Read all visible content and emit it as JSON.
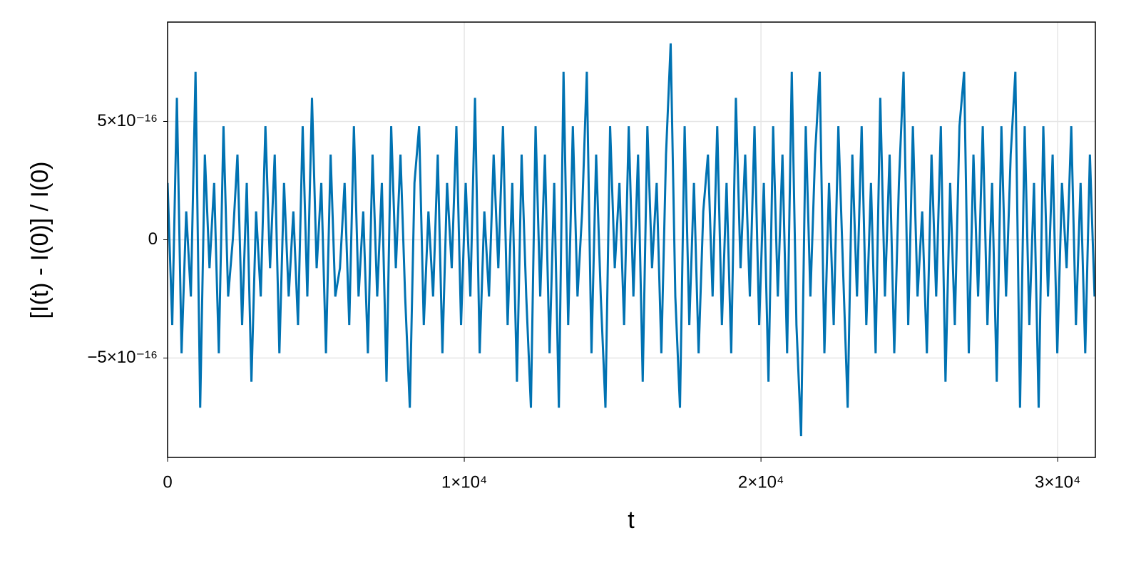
{
  "chart_data": {
    "type": "line",
    "x_label": "t",
    "y_label": "[I(t) - I(0)] / I(0)",
    "color": "#0072b2",
    "grid": true,
    "xlim": [
      0,
      31270
    ],
    "ylim": [
      -9.2e-16,
      9.2e-16
    ],
    "xticks": [
      0,
      {
        "value": 10000,
        "label": "1×10⁴"
      },
      {
        "value": 20000,
        "label": "2×10⁴"
      },
      {
        "value": 30000,
        "label": "3×10⁴"
      }
    ],
    "yticks": [
      {
        "value": -5e-16,
        "label": "−5×10⁻¹⁶"
      },
      0,
      {
        "value": 5e-16,
        "label": "5×10⁻¹⁶"
      }
    ],
    "x": [
      0,
      157,
      314,
      471,
      628,
      785,
      942,
      1099,
      1256,
      1413,
      1570,
      1727,
      1884,
      2041,
      2198,
      2355,
      2512,
      2669,
      2826,
      2983,
      3140,
      3297,
      3454,
      3611,
      3768,
      3925,
      4082,
      4239,
      4396,
      4553,
      4710,
      4867,
      5024,
      5181,
      5338,
      5495,
      5652,
      5809,
      5966,
      6123,
      6280,
      6437,
      6594,
      6751,
      6908,
      7065,
      7222,
      7379,
      7536,
      7693,
      7850,
      8007,
      8164,
      8321,
      8478,
      8635,
      8792,
      8949,
      9106,
      9263,
      9420,
      9577,
      9734,
      9891,
      10048,
      10205,
      10362,
      10519,
      10676,
      10833,
      10990,
      11147,
      11304,
      11461,
      11618,
      11775,
      11932,
      12089,
      12246,
      12403,
      12560,
      12717,
      12874,
      13031,
      13188,
      13345,
      13502,
      13659,
      13816,
      13973,
      14130,
      14287,
      14444,
      14601,
      14758,
      14915,
      15072,
      15229,
      15386,
      15543,
      15700,
      15857,
      16014,
      16171,
      16328,
      16485,
      16642,
      16799,
      16956,
      17113,
      17270,
      17427,
      17584,
      17741,
      17898,
      18055,
      18212,
      18369,
      18526,
      18683,
      18840,
      18997,
      19154,
      19311,
      19468,
      19625,
      19782,
      19939,
      20096,
      20253,
      20410,
      20567,
      20724,
      20881,
      21038,
      21195,
      21352,
      21509,
      21666,
      21823,
      21980,
      22137,
      22294,
      22451,
      22608,
      22765,
      22922,
      23079,
      23236,
      23393,
      23550,
      23707,
      23864,
      24021,
      24178,
      24335,
      24492,
      24649,
      24806,
      24963,
      25120,
      25277,
      25434,
      25591,
      25748,
      25905,
      26062,
      26219,
      26376,
      26533,
      26690,
      26847,
      27004,
      27161,
      27318,
      27475,
      27632,
      27789,
      27946,
      28103,
      28260,
      28417,
      28574,
      28731,
      28888,
      29045,
      29202,
      29359,
      29516,
      29673,
      29830,
      29987,
      30144,
      30301,
      30458,
      30615,
      30772,
      30929,
      31086,
      31243
    ],
    "values": [
      2.4e-16,
      -3.6e-16,
      6e-16,
      -4.8e-16,
      1.2e-16,
      -2.4e-16,
      7.1e-16,
      -7.1e-16,
      3.6e-16,
      -1.2e-16,
      2.4e-16,
      -4.8e-16,
      4.8e-16,
      -2.4e-16,
      0,
      3.6e-16,
      -3.6e-16,
      2.4e-16,
      -6e-16,
      1.2e-16,
      -2.4e-16,
      4.8e-16,
      -1.2e-16,
      3.6e-16,
      -4.8e-16,
      2.4e-16,
      -2.4e-16,
      1.2e-16,
      -3.6e-16,
      4.8e-16,
      -2.4e-16,
      6e-16,
      -1.2e-16,
      2.4e-16,
      -4.8e-16,
      3.6e-16,
      -2.4e-16,
      -1.2e-16,
      2.4e-16,
      -3.6e-16,
      4.8e-16,
      -2.4e-16,
      1.2e-16,
      -4.8e-16,
      3.6e-16,
      -2.4e-16,
      2.4e-16,
      -6e-16,
      4.8e-16,
      -1.2e-16,
      3.6e-16,
      -2.4e-16,
      -7.1e-16,
      2.4e-16,
      4.8e-16,
      -3.6e-16,
      1.2e-16,
      -2.4e-16,
      3.6e-16,
      -4.8e-16,
      2.4e-16,
      -1.2e-16,
      4.8e-16,
      -3.6e-16,
      2.4e-16,
      -2.4e-16,
      6e-16,
      -4.8e-16,
      1.2e-16,
      -2.4e-16,
      3.6e-16,
      -1.2e-16,
      4.8e-16,
      -3.6e-16,
      2.4e-16,
      -6e-16,
      3.6e-16,
      -2.4e-16,
      -7.1e-16,
      4.8e-16,
      -2.4e-16,
      3.6e-16,
      -4.8e-16,
      2.4e-16,
      -7.1e-16,
      7.1e-16,
      -3.6e-16,
      4.8e-16,
      -2.4e-16,
      1.2e-16,
      7.1e-16,
      -4.8e-16,
      3.6e-16,
      -2.4e-16,
      -7.1e-16,
      4.8e-16,
      -1.2e-16,
      2.4e-16,
      -3.6e-16,
      4.8e-16,
      -2.4e-16,
      3.6e-16,
      -6e-16,
      4.8e-16,
      -1.2e-16,
      2.4e-16,
      -4.8e-16,
      3.6e-16,
      8.3e-16,
      -2.4e-16,
      -7.1e-16,
      4.8e-16,
      -3.6e-16,
      2.4e-16,
      -4.8e-16,
      1.2e-16,
      3.6e-16,
      -2.4e-16,
      4.8e-16,
      -3.6e-16,
      2.4e-16,
      -4.8e-16,
      6e-16,
      -1.2e-16,
      3.6e-16,
      -2.4e-16,
      4.8e-16,
      -3.6e-16,
      2.4e-16,
      -6e-16,
      4.8e-16,
      -2.4e-16,
      3.6e-16,
      -4.8e-16,
      7.1e-16,
      -3.6e-16,
      -8.3e-16,
      4.8e-16,
      -2.4e-16,
      3.6e-16,
      7.1e-16,
      -4.8e-16,
      2.4e-16,
      -3.6e-16,
      4.8e-16,
      -1.2e-16,
      -7.1e-16,
      3.6e-16,
      -2.4e-16,
      4.8e-16,
      -3.6e-16,
      2.4e-16,
      -4.8e-16,
      6e-16,
      -2.4e-16,
      3.6e-16,
      -4.8e-16,
      2.4e-16,
      7.1e-16,
      -3.6e-16,
      4.8e-16,
      -2.4e-16,
      1.2e-16,
      -4.8e-16,
      3.6e-16,
      -2.4e-16,
      4.8e-16,
      -6e-16,
      2.4e-16,
      -3.6e-16,
      4.8e-16,
      7.1e-16,
      -4.8e-16,
      3.6e-16,
      -2.4e-16,
      4.8e-16,
      -3.6e-16,
      2.4e-16,
      -6e-16,
      4.8e-16,
      -2.4e-16,
      3.6e-16,
      7.1e-16,
      -7.1e-16,
      4.8e-16,
      -3.6e-16,
      2.4e-16,
      -7.1e-16,
      4.8e-16,
      -2.4e-16,
      3.6e-16,
      -4.8e-16,
      2.4e-16,
      -1.2e-16,
      4.8e-16,
      -3.6e-16,
      2.4e-16,
      -4.8e-16,
      3.6e-16,
      -2.4e-16
    ]
  }
}
